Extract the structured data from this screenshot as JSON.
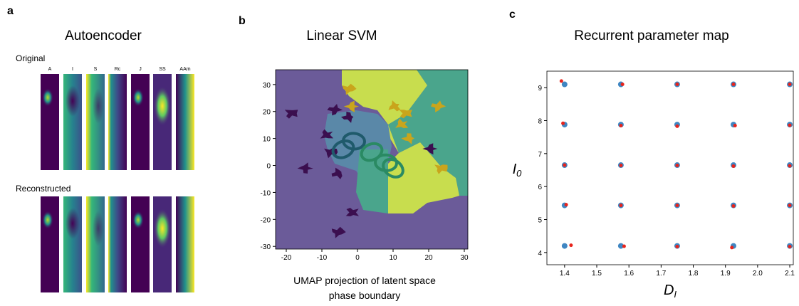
{
  "panel_a": {
    "label": "a",
    "title": "Autoencoder",
    "rows": [
      "Original",
      "Reconstructed"
    ],
    "columns": [
      "A",
      "I",
      "S",
      "Rc",
      "J",
      "SS",
      "AAm"
    ]
  },
  "chart_data": [
    {
      "type": "region-scatter",
      "label": "b",
      "title": "Linear SVM",
      "caption": [
        "UMAP projection of latent space",
        "phase boundary"
      ],
      "xlim": [
        -23,
        31
      ],
      "ylim": [
        -31,
        35.5
      ],
      "xticks": [
        -20,
        -10,
        0,
        10,
        20,
        30
      ],
      "yticks": [
        -30,
        -20,
        -10,
        0,
        10,
        20,
        30
      ],
      "series": [
        {
          "color": "#3b0f4f",
          "marker": "blob",
          "x": [
            -18.6,
            -6.5,
            -2.5,
            -8.6,
            -7.5,
            -14.6,
            -5.5,
            -1.5,
            -5.5,
            20.6
          ],
          "y": [
            19.3,
            20.6,
            18,
            11.4,
            4.9,
            -1.1,
            -3,
            -17.4,
            -24.7,
            6.2
          ]
        },
        {
          "color": "#c9a51c",
          "marker": "blob",
          "x": [
            -2.5,
            -1.5,
            10.5,
            13.5,
            22.5,
            14.5,
            12.5,
            23.5
          ],
          "y": [
            28.4,
            21.9,
            21.9,
            19.3,
            21.9,
            10.1,
            15.3,
            -1.1
          ]
        },
        {
          "color": "#1f5a6b",
          "marker": "ring",
          "x": [
            -4,
            -1
          ],
          "y": [
            6,
            9
          ]
        },
        {
          "color": "#2a8a63",
          "marker": "ring",
          "x": [
            4,
            8,
            10
          ],
          "y": [
            5,
            1,
            -1
          ]
        }
      ]
    },
    {
      "type": "scatter",
      "label": "c",
      "title": "Recurrent parameter map",
      "xlabel": "D",
      "xlabel_subscript": "I",
      "ylabel": "I",
      "ylabel_subscript": "0",
      "xlim": [
        1.345,
        2.111
      ],
      "ylim": [
        3.63,
        9.5
      ],
      "xticks": [
        1.4,
        1.5,
        1.6,
        1.7,
        1.8,
        1.9,
        {
          "value": 2.0,
          "label": "2.0"
        },
        2.1
      ],
      "yticks": [
        4,
        5,
        6,
        7,
        8,
        9
      ],
      "series": [
        {
          "color": "#3f86c2",
          "size": 4,
          "x": [
            1.4,
            1.575,
            1.75,
            1.925,
            2.1,
            1.4,
            1.575,
            1.75,
            1.925,
            2.1,
            1.4,
            1.575,
            1.75,
            1.925,
            2.1,
            1.4,
            1.575,
            1.75,
            1.925,
            2.1,
            1.4,
            1.575,
            1.75,
            1.925,
            2.1
          ],
          "y": [
            9.1,
            9.1,
            9.1,
            9.1,
            9.1,
            7.88,
            7.88,
            7.88,
            7.88,
            7.88,
            6.65,
            6.65,
            6.65,
            6.65,
            6.65,
            5.43,
            5.43,
            5.43,
            5.43,
            5.43,
            4.2,
            4.2,
            4.2,
            4.2,
            4.2
          ]
        },
        {
          "color": "#e8241c",
          "size": 2.5,
          "x": [
            1.39,
            1.58,
            1.75,
            1.925,
            2.1,
            1.395,
            1.575,
            1.75,
            1.93,
            2.1,
            1.4,
            1.575,
            1.75,
            1.925,
            2.1,
            1.405,
            1.575,
            1.75,
            1.925,
            2.1,
            1.42,
            1.585,
            1.75,
            1.92,
            2.1
          ],
          "y": [
            9.2,
            9.1,
            9.1,
            9.1,
            9.1,
            7.92,
            7.85,
            7.83,
            7.85,
            7.86,
            6.65,
            6.64,
            6.64,
            6.62,
            6.63,
            5.45,
            5.43,
            5.43,
            5.41,
            5.43,
            4.22,
            4.19,
            4.18,
            4.15,
            4.18
          ]
        }
      ]
    }
  ]
}
